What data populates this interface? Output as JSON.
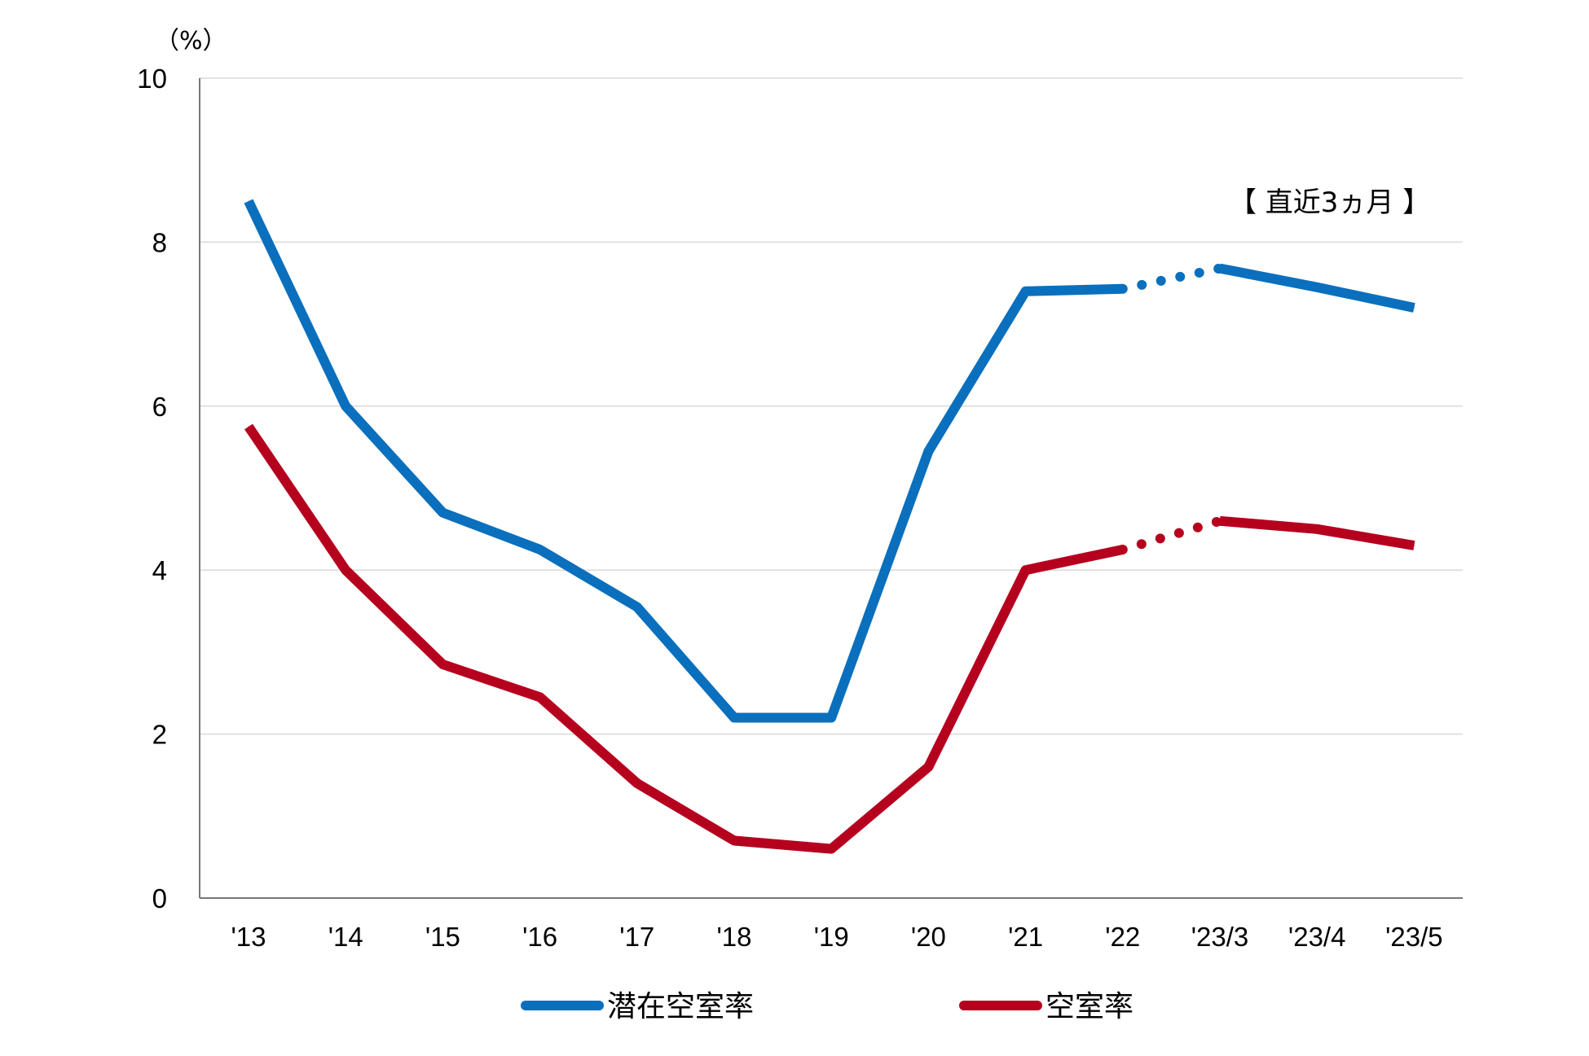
{
  "chart_data": {
    "type": "line",
    "unit_label": "（%）",
    "annotation": "【 直近3ヵ月 】",
    "categories": [
      "'13",
      "'14",
      "'15",
      "'16",
      "'17",
      "'18",
      "'19",
      "'20",
      "'21",
      "'22",
      "'23/3",
      "'23/4",
      "'23/5"
    ],
    "ylim": [
      0,
      10
    ],
    "yticks": [
      "0",
      "2",
      "4",
      "6",
      "8",
      "10"
    ],
    "grid": true,
    "legend_position": "bottom",
    "series": [
      {
        "name": "潜在空室率",
        "color": "#0a6fbd",
        "values": [
          8.5,
          6.0,
          4.7,
          4.25,
          3.55,
          2.2,
          2.2,
          5.45,
          7.4,
          7.43,
          7.68,
          7.45,
          7.2
        ]
      },
      {
        "name": "空室率",
        "color": "#b5001e",
        "values": [
          5.75,
          4.0,
          2.85,
          2.45,
          1.4,
          0.7,
          0.6,
          1.6,
          4.0,
          4.25,
          4.6,
          4.5,
          4.3
        ]
      }
    ],
    "dotted_between": [
      "'22",
      "'23/3"
    ]
  }
}
